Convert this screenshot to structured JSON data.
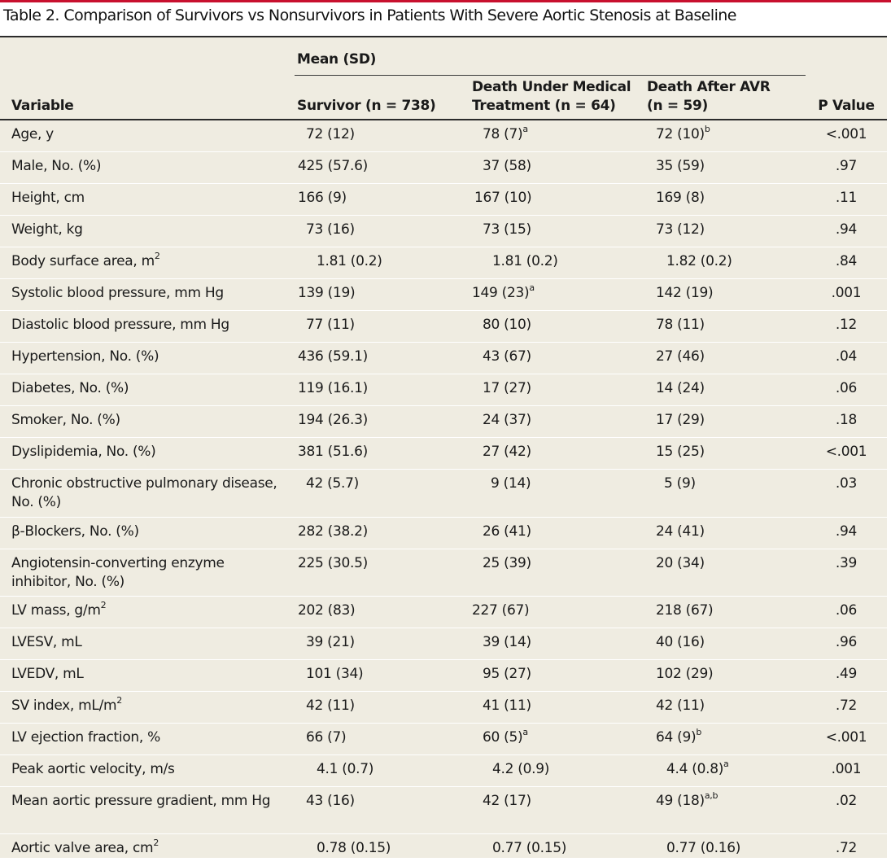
{
  "title": "Table 2. Comparison of Survivors vs Nonsurvivors in Patients With Severe Aortic Stenosis at Baseline",
  "header": {
    "variable": "Variable",
    "mean_group": "Mean (SD)",
    "col1": "Survivor (n = 738)",
    "col2_line1": "Death Under Medical",
    "col2_line2": "Treatment (n = 64)",
    "col3_line1": "Death After AVR",
    "col3_line2": "(n = 59)",
    "pvalue": "P Value"
  },
  "rows": [
    {
      "label": "Age, y",
      "c1": "72 (12)",
      "c2": "78 (7)",
      "c2_sup": "a",
      "c3": "72 (10)",
      "c3_sup": "b",
      "p": "<.001"
    },
    {
      "label": "Male, No. (%)",
      "c1": "425 (57.6)",
      "c2": "37 (58)",
      "c3": "35 (59)",
      "p": ".97"
    },
    {
      "label": "Height, cm",
      "c1": "166 (9)",
      "c2": "167 (10)",
      "c3": "169 (8)",
      "p": ".11"
    },
    {
      "label": "Weight, kg",
      "c1": "73 (16)",
      "c2": "73 (15)",
      "c3": "73 (12)",
      "p": ".94"
    },
    {
      "label": "Body surface area, m",
      "label_sup": "2",
      "c1": "1.81 (0.2)",
      "c2": "1.81 (0.2)",
      "c3": "1.82 (0.2)",
      "p": ".84"
    },
    {
      "label": "Systolic blood pressure, mm Hg",
      "c1": "139 (19)",
      "c2": "149 (23)",
      "c2_sup": "a",
      "c3": "142 (19)",
      "p": ".001"
    },
    {
      "label": "Diastolic blood pressure, mm Hg",
      "c1": "77 (11)",
      "c2": "80 (10)",
      "c3": "78 (11)",
      "p": ".12"
    },
    {
      "label": "Hypertension, No. (%)",
      "c1": "436 (59.1)",
      "c2": "43 (67)",
      "c3": "27 (46)",
      "p": ".04"
    },
    {
      "label": "Diabetes, No. (%)",
      "c1": "119 (16.1)",
      "c2": "17 (27)",
      "c3": "14 (24)",
      "p": ".06"
    },
    {
      "label": "Smoker, No. (%)",
      "c1": "194 (26.3)",
      "c2": "24 (37)",
      "c3": "17 (29)",
      "p": ".18"
    },
    {
      "label": "Dyslipidemia, No. (%)",
      "c1": "381 (51.6)",
      "c2": "27 (42)",
      "c3": "15 (25)",
      "p": "<.001"
    },
    {
      "label": "Chronic obstructive pulmonary disease, No. (%)",
      "c1": "42 (5.7)",
      "c2": "9 (14)",
      "c3": "5 (9)",
      "p": ".03"
    },
    {
      "label": "β-Blockers, No. (%)",
      "c1": "282 (38.2)",
      "c2": "26 (41)",
      "c3": "24 (41)",
      "p": ".94"
    },
    {
      "label": "Angiotensin-converting enzyme inhibitor, No. (%)",
      "c1": "225 (30.5)",
      "c2": "25 (39)",
      "c3": "20 (34)",
      "p": ".39"
    },
    {
      "label": "LV mass, g/m",
      "label_sup": "2",
      "c1": "202 (83)",
      "c2": "227 (67)",
      "c3": "218 (67)",
      "p": ".06"
    },
    {
      "label": "LVESV, mL",
      "c1": "39 (21)",
      "c2": "39 (14)",
      "c3": "40 (16)",
      "p": ".96"
    },
    {
      "label": "LVEDV, mL",
      "c1": "101 (34)",
      "c2": "95 (27)",
      "c3": "102 (29)",
      "p": ".49"
    },
    {
      "label": "SV index, mL/m",
      "label_sup": "2",
      "c1": "42 (11)",
      "c2": "41 (11)",
      "c3": "42 (11)",
      "p": ".72"
    },
    {
      "label": "LV ejection fraction, %",
      "c1": "66 (7)",
      "c2": "60 (5)",
      "c2_sup": "a",
      "c3": "64 (9)",
      "c3_sup": "b",
      "p": "<.001"
    },
    {
      "label": "Peak aortic velocity, m/s",
      "c1": "4.1 (0.7)",
      "c2": "4.2 (0.9)",
      "c3": "4.4 (0.8)",
      "c3_sup": "a",
      "p": ".001"
    },
    {
      "label": "Mean aortic pressure gradient, mm Hg",
      "c1": "43 (16)",
      "c2": "42 (17)",
      "c3": "49 (18)",
      "c3_sup": "a,b",
      "p": ".02"
    },
    {
      "label": "Aortic valve area, cm",
      "label_sup": "2",
      "c1": "0.78 (0.15)",
      "c2": "0.77 (0.15)",
      "c3": "0.77 (0.16)",
      "p": ".72"
    }
  ]
}
